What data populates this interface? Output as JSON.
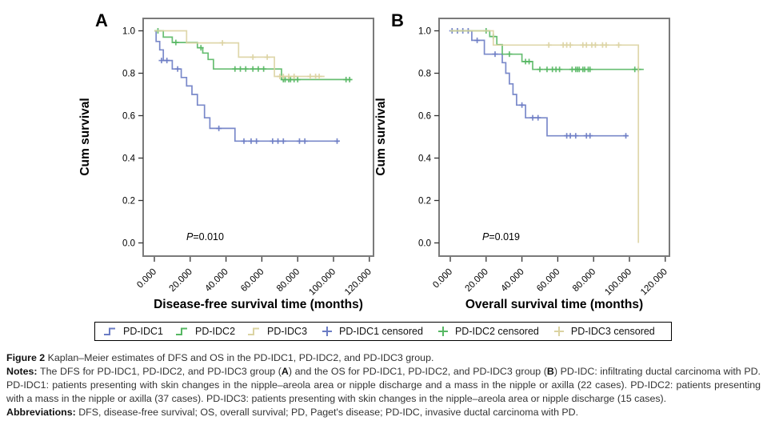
{
  "colors": {
    "pd_idc1": "#6b7cc4",
    "pd_idc2": "#56b763",
    "pd_idc3": "#dbd3a2",
    "axis_frame": "#7a7a7a",
    "tick": "#333333",
    "text": "#000000"
  },
  "chart_data": [
    {
      "type": "line",
      "subtype": "kaplan-meier-step",
      "panel_label": "A",
      "xlabel": "Disease-free survival time (months)",
      "ylabel": "Cum survival",
      "p_italic": "P",
      "p_rest": "=0.010",
      "xtick_labels": [
        "0.000",
        "20.000",
        "40.000",
        "60.000",
        "80.000",
        "100.000",
        "120.000"
      ],
      "xtick_values": [
        0,
        20,
        40,
        60,
        80,
        100,
        120
      ],
      "ytick_labels": [
        "0.0",
        "0.2",
        "0.4",
        "0.6",
        "0.8",
        "1.0"
      ],
      "ytick_values": [
        0,
        0.2,
        0.4,
        0.6,
        0.8,
        1.0
      ],
      "xlim": [
        0,
        120
      ],
      "ylim": [
        0,
        1.0
      ],
      "grid": false,
      "series": [
        {
          "name": "PD-IDC1",
          "color_key": "pd_idc1",
          "steps": [
            [
              0,
              1.0
            ],
            [
              1,
              0.95
            ],
            [
              3,
              0.91
            ],
            [
              5,
              0.86
            ],
            [
              10,
              0.82
            ],
            [
              15,
              0.78
            ],
            [
              18,
              0.74
            ],
            [
              21,
              0.7
            ],
            [
              24,
              0.65
            ],
            [
              28,
              0.59
            ],
            [
              31,
              0.54
            ],
            [
              45,
              0.48
            ]
          ],
          "end": 103,
          "censors": [
            [
              4,
              0.86
            ],
            [
              7,
              0.86
            ],
            [
              13,
              0.82
            ],
            [
              36,
              0.54
            ],
            [
              50,
              0.48
            ],
            [
              54,
              0.48
            ],
            [
              57,
              0.48
            ],
            [
              66,
              0.48
            ],
            [
              69,
              0.48
            ],
            [
              72,
              0.48
            ],
            [
              81,
              0.48
            ],
            [
              84,
              0.48
            ],
            [
              102,
              0.48
            ]
          ]
        },
        {
          "name": "PD-IDC2",
          "color_key": "pd_idc2",
          "steps": [
            [
              0,
              1.0
            ],
            [
              5,
              0.97
            ],
            [
              10,
              0.945
            ],
            [
              24,
              0.92
            ],
            [
              27,
              0.895
            ],
            [
              30,
              0.865
            ],
            [
              33,
              0.82
            ],
            [
              71,
              0.77
            ]
          ],
          "end": 110,
          "censors": [
            [
              2,
              1.0
            ],
            [
              12,
              0.945
            ],
            [
              26,
              0.92
            ],
            [
              45,
              0.82
            ],
            [
              48,
              0.82
            ],
            [
              51,
              0.82
            ],
            [
              55,
              0.82
            ],
            [
              58,
              0.82
            ],
            [
              61,
              0.82
            ],
            [
              72,
              0.77
            ],
            [
              73,
              0.77
            ],
            [
              75,
              0.77
            ],
            [
              76,
              0.77
            ],
            [
              78,
              0.77
            ],
            [
              80,
              0.77
            ],
            [
              107,
              0.77
            ],
            [
              109,
              0.77
            ]
          ]
        },
        {
          "name": "PD-IDC3",
          "color_key": "pd_idc3",
          "steps": [
            [
              0,
              1.0
            ],
            [
              18,
              0.943
            ],
            [
              47,
              0.876
            ],
            [
              67,
              0.785
            ]
          ],
          "end": 95,
          "censors": [
            [
              38,
              0.943
            ],
            [
              55,
              0.876
            ],
            [
              63,
              0.876
            ],
            [
              70,
              0.785
            ],
            [
              72,
              0.785
            ],
            [
              75,
              0.785
            ],
            [
              78,
              0.785
            ],
            [
              87,
              0.785
            ],
            [
              90,
              0.785
            ],
            [
              92,
              0.785
            ]
          ]
        }
      ]
    },
    {
      "type": "line",
      "subtype": "kaplan-meier-step",
      "panel_label": "B",
      "xlabel": "Overall survival time (months)",
      "ylabel": "Cum survival",
      "p_italic": "P",
      "p_rest": "=0.019",
      "xtick_labels": [
        "0.000",
        "20.000",
        "40.000",
        "60.000",
        "80.000",
        "100.000",
        "120.000"
      ],
      "xtick_values": [
        0,
        20,
        40,
        60,
        80,
        100,
        120
      ],
      "ytick_labels": [
        "0.0",
        "0.2",
        "0.4",
        "0.6",
        "0.8",
        "1.0"
      ],
      "ytick_values": [
        0,
        0.2,
        0.4,
        0.6,
        0.8,
        1.0
      ],
      "xlim": [
        0,
        120
      ],
      "ylim": [
        0,
        1.0
      ],
      "grid": false,
      "series": [
        {
          "name": "PD-IDC1",
          "color_key": "pd_idc1",
          "steps": [
            [
              0,
              1.0
            ],
            [
              12,
              0.955
            ],
            [
              19,
              0.89
            ],
            [
              29,
              0.85
            ],
            [
              31,
              0.8
            ],
            [
              33,
              0.75
            ],
            [
              35,
              0.7
            ],
            [
              37,
              0.65
            ],
            [
              42,
              0.59
            ],
            [
              54,
              0.505
            ]
          ],
          "end": 99,
          "censors": [
            [
              1,
              1.0
            ],
            [
              4,
              1.0
            ],
            [
              7,
              1.0
            ],
            [
              10,
              1.0
            ],
            [
              15,
              0.955
            ],
            [
              25,
              0.89
            ],
            [
              40,
              0.65
            ],
            [
              46,
              0.59
            ],
            [
              49,
              0.59
            ],
            [
              65,
              0.505
            ],
            [
              67,
              0.505
            ],
            [
              70,
              0.505
            ],
            [
              76,
              0.505
            ],
            [
              78,
              0.505
            ],
            [
              98,
              0.505
            ]
          ]
        },
        {
          "name": "PD-IDC2",
          "color_key": "pd_idc2",
          "steps": [
            [
              0,
              1.0
            ],
            [
              22,
              0.973
            ],
            [
              26,
              0.935
            ],
            [
              29,
              0.89
            ],
            [
              40,
              0.855
            ],
            [
              46,
              0.818
            ]
          ],
          "end": 108,
          "censors": [
            [
              20,
              1.0
            ],
            [
              24,
              0.973
            ],
            [
              33,
              0.89
            ],
            [
              42,
              0.855
            ],
            [
              44,
              0.855
            ],
            [
              50,
              0.818
            ],
            [
              54,
              0.818
            ],
            [
              57,
              0.818
            ],
            [
              59,
              0.818
            ],
            [
              61,
              0.818
            ],
            [
              68,
              0.818
            ],
            [
              70,
              0.818
            ],
            [
              71,
              0.818
            ],
            [
              72,
              0.818
            ],
            [
              74,
              0.818
            ],
            [
              75,
              0.818
            ],
            [
              77,
              0.818
            ],
            [
              78,
              0.818
            ],
            [
              103,
              0.818
            ],
            [
              105,
              0.818
            ]
          ]
        },
        {
          "name": "PD-IDC3",
          "color_key": "pd_idc3",
          "steps": [
            [
              0,
              1.0
            ],
            [
              24,
              0.933
            ],
            [
              105,
              0.0
            ]
          ],
          "end": 105,
          "censors": [
            [
              55,
              0.933
            ],
            [
              63,
              0.933
            ],
            [
              65,
              0.933
            ],
            [
              67,
              0.933
            ],
            [
              74,
              0.933
            ],
            [
              76,
              0.933
            ],
            [
              79,
              0.933
            ],
            [
              81,
              0.933
            ],
            [
              85,
              0.933
            ],
            [
              87,
              0.933
            ],
            [
              94,
              0.933
            ]
          ]
        }
      ]
    }
  ],
  "legend": {
    "items": [
      {
        "label": "PD-IDC1",
        "marker": "step",
        "color_key": "pd_idc1"
      },
      {
        "label": "PD-IDC2",
        "marker": "step",
        "color_key": "pd_idc2"
      },
      {
        "label": "PD-IDC3",
        "marker": "step",
        "color_key": "pd_idc3"
      },
      {
        "label": "PD-IDC1 censored",
        "marker": "plus",
        "color_key": "pd_idc1"
      },
      {
        "label": "PD-IDC2 censored",
        "marker": "plus",
        "color_key": "pd_idc2"
      },
      {
        "label": "PD-IDC3 censored",
        "marker": "plus",
        "color_key": "pd_idc3"
      }
    ]
  },
  "caption": {
    "figure_label": "Figure 2",
    "figure_title": "Kaplan–Meier estimates of DFS and OS in the PD-IDC1, PD-IDC2, and PD-IDC3 group.",
    "notes_label": "Notes:",
    "notes_parts": [
      {
        "t": " The DFS for PD-IDC1, PD-IDC2, and PD-IDC3 group (",
        "b": false
      },
      {
        "t": "A",
        "b": true
      },
      {
        "t": ") and the OS for PD-IDC1, PD-IDC2, and PD-IDC3 group (",
        "b": false
      },
      {
        "t": "B",
        "b": true
      },
      {
        "t": ") PD-IDC: infiltrating ductal carcinoma with PD. PD-IDC1: patients presenting with skin changes in the nipple–areola area or nipple discharge and a mass in the nipple or axilla (22 cases). PD-IDC2: patients presenting with a mass in the nipple or axilla (37 cases). PD-IDC3: patients presenting with skin changes in the nipple–areola area or nipple discharge (15 cases).",
        "b": false
      }
    ],
    "abbreviations_label": "Abbreviations:",
    "abbreviations_text": " DFS, disease-free survival; OS, overall survival; PD, Paget's disease; PD-IDC, invasive ductal carcinoma with PD."
  }
}
